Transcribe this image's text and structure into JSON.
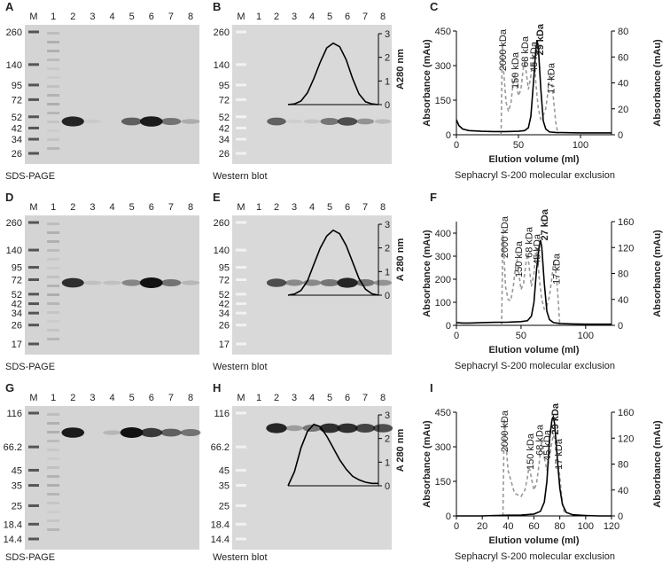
{
  "gels": [
    {
      "letter": "A",
      "caption": "SDS-PAGE",
      "lanes": [
        "M",
        "1",
        "2",
        "3",
        "4",
        "5",
        "6",
        "7",
        "8"
      ],
      "markers": [
        260,
        140,
        95,
        72,
        52,
        42,
        34,
        26
      ]
    },
    {
      "letter": "B",
      "caption": "Western blot",
      "lanes": [
        "M",
        "1",
        "2",
        "3",
        "4",
        "5",
        "6",
        "7",
        "8"
      ],
      "markers": [
        260,
        140,
        95,
        72,
        52,
        42,
        34,
        26
      ]
    },
    {
      "letter": "D",
      "caption": "SDS-PAGE",
      "lanes": [
        "M",
        "1",
        "2",
        "3",
        "4",
        "5",
        "6",
        "7",
        "8"
      ],
      "markers": [
        260,
        140,
        95,
        72,
        52,
        42,
        34,
        26,
        17
      ]
    },
    {
      "letter": "E",
      "caption": "Western blot",
      "lanes": [
        "M",
        "1",
        "2",
        "3",
        "4",
        "5",
        "6",
        "7",
        "8"
      ],
      "markers": [
        260,
        140,
        95,
        72,
        52,
        42,
        34,
        26,
        17
      ]
    },
    {
      "letter": "G",
      "caption": "SDS-PAGE",
      "lanes": [
        "M",
        "1",
        "2",
        "3",
        "4",
        "5",
        "6",
        "7",
        "8"
      ],
      "markers": [
        116,
        66.2,
        45,
        35,
        25,
        18.4,
        14.4
      ]
    },
    {
      "letter": "H",
      "caption": "Western blot",
      "lanes": [
        "M",
        "1",
        "2",
        "3",
        "4",
        "5",
        "6",
        "7",
        "8"
      ],
      "markers": [
        116,
        66.2,
        45,
        35,
        25,
        18.4,
        14.4
      ]
    }
  ],
  "chart_data": [
    {
      "type": "line",
      "ylabel": "A280 nm",
      "yaxis_side": "right",
      "ylim": [
        0,
        3
      ],
      "yticks": [
        0,
        1,
        2,
        3
      ],
      "color": "#000000",
      "values": [
        0,
        0.03,
        0.15,
        0.5,
        1.1,
        1.8,
        2.4,
        2.6,
        2.45,
        1.9,
        1.1,
        0.45,
        0.12,
        0.03,
        0
      ]
    },
    {
      "type": "line",
      "panel": "C",
      "xlabel": "Elution volume (ml)",
      "ylabel": "Absorbance (mAu)",
      "y2label": "Absorbance (mAu)",
      "caption": "Sephacryl S-200 molecular exclusion",
      "xlim": [
        0,
        125
      ],
      "xticks": [
        0,
        50,
        100
      ],
      "ylim": [
        0,
        450
      ],
      "yticks": [
        0,
        150,
        300,
        450
      ],
      "y2lim": [
        0,
        80
      ],
      "y2ticks": [
        0,
        20,
        40,
        60,
        80
      ],
      "annotations": [
        {
          "text": "2000 kDa",
          "color": "#999999"
        },
        {
          "text": "150 kDa",
          "color": "#999999"
        },
        {
          "text": "68 kDa",
          "color": "#999999"
        },
        {
          "text": "45 kDa",
          "color": "#999999"
        },
        {
          "text": "29 kDa",
          "color": "#000000",
          "bold": true
        },
        {
          "text": "17 kDa",
          "color": "#999999"
        }
      ],
      "series": [
        {
          "color": "#999999",
          "dash": true,
          "axis": "y2",
          "x": [
            36,
            37,
            38,
            40,
            42,
            44,
            46,
            47,
            48,
            50,
            52,
            54,
            55,
            56,
            58,
            60,
            61,
            62,
            63,
            64,
            66,
            68,
            70,
            72,
            74,
            75,
            76,
            78,
            80,
            82
          ],
          "values": [
            0,
            70,
            50,
            25,
            18,
            25,
            42,
            48,
            42,
            30,
            35,
            52,
            57,
            50,
            35,
            45,
            55,
            62,
            55,
            40,
            20,
            12,
            15,
            20,
            35,
            44,
            48,
            30,
            10,
            0
          ]
        },
        {
          "color": "#000000",
          "x": [
            0,
            2,
            5,
            10,
            20,
            30,
            40,
            50,
            55,
            58,
            60,
            62,
            64,
            65,
            66,
            68,
            70,
            72,
            75,
            80,
            90,
            100,
            110,
            125
          ],
          "values": [
            65,
            40,
            25,
            18,
            15,
            14,
            14,
            15,
            18,
            30,
            80,
            220,
            370,
            410,
            380,
            200,
            60,
            25,
            12,
            10,
            9,
            8,
            8,
            8
          ]
        }
      ]
    },
    {
      "type": "line",
      "ylabel": "A 280 nm",
      "yaxis_side": "right",
      "ylim": [
        0,
        3
      ],
      "yticks": [
        0,
        1,
        2,
        3
      ],
      "color": "#000000",
      "values": [
        0,
        0.05,
        0.2,
        0.6,
        1.3,
        2.0,
        2.5,
        2.75,
        2.6,
        2.1,
        1.4,
        0.7,
        0.25,
        0.06,
        0
      ]
    },
    {
      "type": "line",
      "panel": "F",
      "xlabel": "Elution volume (ml)",
      "ylabel": "Absorbance (mAu)",
      "y2label": "Absorbance (mAu)",
      "caption": "Sephacryl S-200 molecular exclusion",
      "xlim": [
        0,
        120
      ],
      "xticks": [
        0,
        50,
        100
      ],
      "ylim": [
        0,
        450
      ],
      "yticks": [
        0,
        100,
        200,
        300,
        400
      ],
      "y2lim": [
        0,
        160
      ],
      "y2ticks": [
        0,
        40,
        80,
        120,
        160
      ],
      "annotations": [
        {
          "text": "2000 kDa",
          "color": "#999999"
        },
        {
          "text": "150 kDa",
          "color": "#999999"
        },
        {
          "text": "68 kDa",
          "color": "#999999"
        },
        {
          "text": "45 kDa",
          "color": "#999999"
        },
        {
          "text": "27 kDa",
          "color": "#000000",
          "bold": true
        },
        {
          "text": "17 kDa",
          "color": "#999999"
        }
      ],
      "series": [
        {
          "color": "#999999",
          "dash": true,
          "axis": "y2",
          "x": [
            35,
            36,
            37,
            38,
            40,
            42,
            44,
            46,
            47,
            48,
            50,
            52,
            54,
            55,
            56,
            58,
            60,
            61,
            62,
            63,
            64,
            66,
            68,
            70,
            72,
            74,
            75,
            76,
            78,
            80
          ],
          "values": [
            0,
            145,
            100,
            60,
            40,
            38,
            60,
            95,
            100,
            85,
            55,
            65,
            100,
            110,
            95,
            60,
            80,
            105,
            120,
            100,
            75,
            40,
            25,
            30,
            45,
            75,
            95,
            100,
            60,
            0
          ]
        },
        {
          "color": "#000000",
          "x": [
            0,
            5,
            10,
            20,
            30,
            40,
            50,
            55,
            58,
            60,
            62,
            64,
            65,
            66,
            68,
            70,
            72,
            75,
            80,
            90,
            100,
            110,
            120
          ],
          "values": [
            12,
            10,
            10,
            12,
            13,
            14,
            16,
            20,
            40,
            100,
            240,
            340,
            370,
            340,
            180,
            60,
            25,
            12,
            8,
            6,
            5,
            5,
            5
          ]
        }
      ]
    },
    {
      "type": "line",
      "ylabel": "A 280 nm",
      "yaxis_side": "right",
      "ylim": [
        0,
        3
      ],
      "yticks": [
        0,
        1,
        2,
        3
      ],
      "color": "#000000",
      "values": [
        0,
        0.6,
        1.6,
        2.3,
        2.6,
        2.5,
        2.1,
        1.6,
        1.1,
        0.7,
        0.4,
        0.25,
        0.15,
        0.1,
        0.1
      ]
    },
    {
      "type": "line",
      "panel": "I",
      "xlabel": "Elution volume (ml)",
      "ylabel": "Absorbance (mAu)",
      "y2label": "Absorbance (mAu)",
      "caption": "Sephacryl S-200 molecular exclusion",
      "xlim": [
        0,
        120
      ],
      "xticks": [
        0,
        20,
        40,
        60,
        80,
        100,
        120
      ],
      "ylim": [
        0,
        450
      ],
      "yticks": [
        0,
        150,
        300,
        450
      ],
      "y2lim": [
        0,
        160
      ],
      "y2ticks": [
        0,
        40,
        80,
        120,
        160
      ],
      "annotations": [
        {
          "text": "2000 kDa",
          "color": "#999999"
        },
        {
          "text": "150 kDa",
          "color": "#999999"
        },
        {
          "text": "68 kDa",
          "color": "#999999"
        },
        {
          "text": "45 kDa",
          "color": "#999999"
        },
        {
          "text": "29 kDa",
          "color": "#000000",
          "bold": true
        },
        {
          "text": "17 kDa",
          "color": "#999999"
        }
      ],
      "series": [
        {
          "color": "#999999",
          "dash": true,
          "axis": "y2",
          "x": [
            36,
            37,
            38,
            40,
            45,
            50,
            53,
            55,
            56,
            57,
            58,
            60,
            62,
            64,
            65,
            66,
            67,
            68,
            70,
            72,
            74,
            75,
            76,
            78,
            80,
            82,
            84
          ],
          "values": [
            0,
            150,
            120,
            70,
            35,
            30,
            40,
            60,
            75,
            70,
            58,
            40,
            50,
            80,
            100,
            118,
            108,
            90,
            70,
            90,
            115,
            125,
            120,
            95,
            60,
            20,
            0
          ]
        },
        {
          "color": "#000000",
          "x": [
            0,
            10,
            20,
            30,
            40,
            50,
            60,
            65,
            68,
            70,
            72,
            74,
            75,
            76,
            78,
            80,
            82,
            85,
            90,
            100,
            110,
            120
          ],
          "values": [
            0,
            0,
            0,
            2,
            3,
            4,
            8,
            20,
            60,
            150,
            330,
            420,
            430,
            400,
            250,
            120,
            50,
            15,
            5,
            2,
            0,
            0
          ]
        }
      ]
    }
  ]
}
